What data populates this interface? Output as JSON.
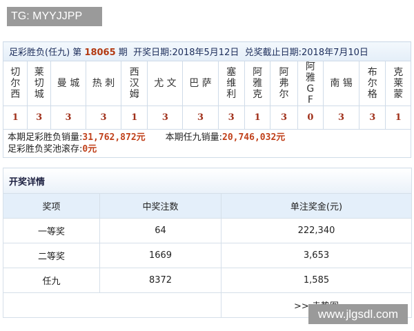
{
  "watermark_top": "TG: MYYJJPP",
  "watermark_bottom": "www.jlgsdl.com",
  "header": {
    "prefix": "足彩胜负(任九) 第 ",
    "issue": "18065",
    "suffix": " 期",
    "draw_date_label": "开奖日期:",
    "draw_date": "2018年5月12日",
    "deadline_label": "兑奖截止日期:",
    "deadline": "2018年7月10日"
  },
  "teams": [
    "切尔西",
    "莱切城",
    "曼 城",
    "热 刺",
    "西汉姆",
    "尤 文",
    "巴 萨",
    "塞维利",
    "阿雅克",
    "阿弗尔",
    "阿雅GF",
    "南 锡",
    "布尔格",
    "克莱蒙"
  ],
  "results": [
    "1",
    "3",
    "3",
    "3",
    "1",
    "3",
    "3",
    "3",
    "1",
    "3",
    "0",
    "3",
    "3",
    "1"
  ],
  "sales": {
    "sfc_label": "本期足彩胜负销量:",
    "sfc_value": "31,762,872元",
    "r9_label": "本期任九销量:",
    "r9_value": "20,746,032元",
    "pool_label": "足彩胜负奖池滚存:",
    "pool_value": "0元"
  },
  "details": {
    "title": "开奖详情",
    "columns": [
      "奖项",
      "中奖注数",
      "单注奖金(元)"
    ],
    "rows": [
      [
        "一等奖",
        "64",
        "222,340"
      ],
      [
        "二等奖",
        "1669",
        "3,653"
      ],
      [
        "任九",
        "8372",
        "1,585"
      ]
    ],
    "trend_link": ">> 走势图"
  }
}
